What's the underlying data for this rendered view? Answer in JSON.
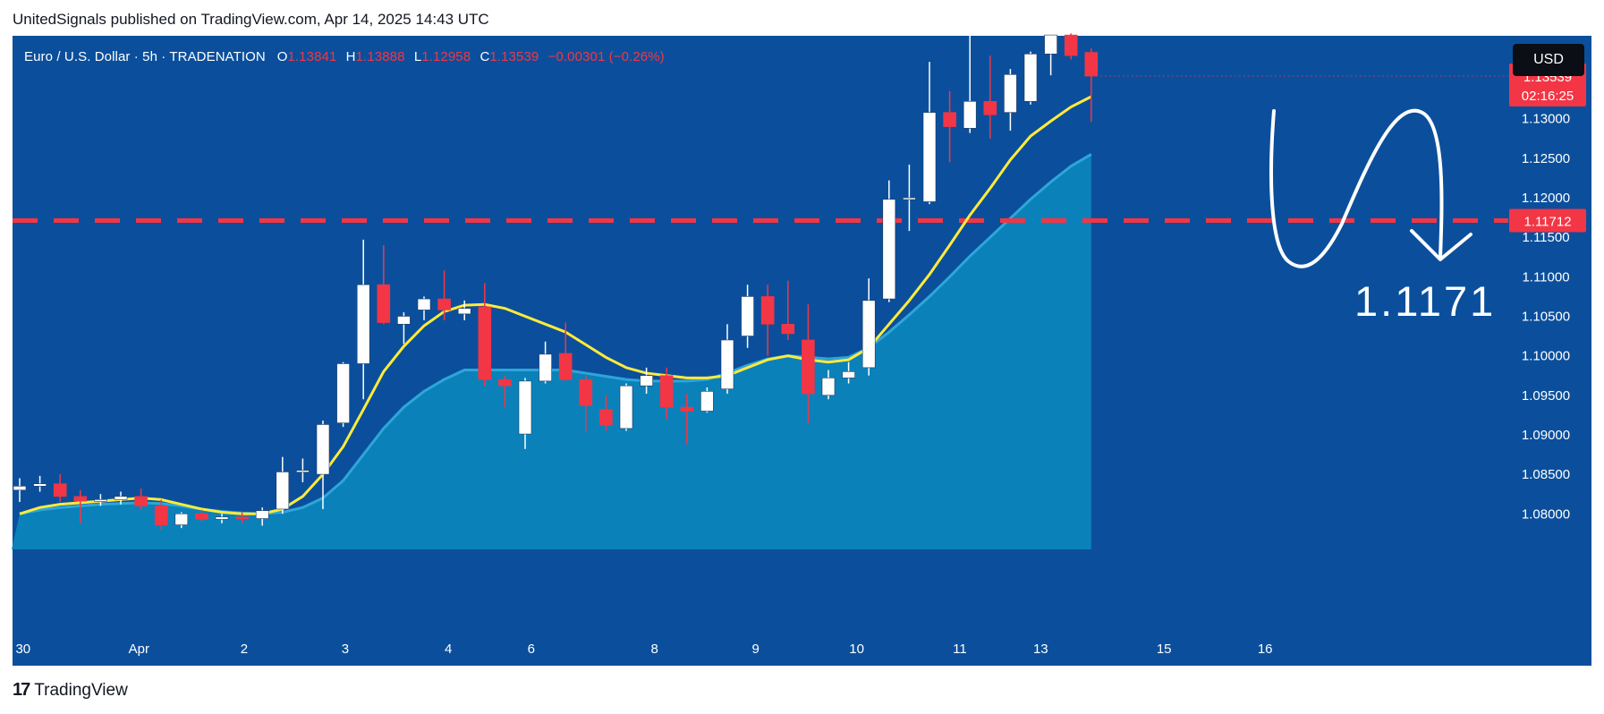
{
  "header": {
    "published_line": "UnitedSignals published on TradingView.com, Apr 14, 2025 14:43 UTC"
  },
  "legend": {
    "symbol": "Euro / U.S. Dollar · 5h · TRADENATION",
    "open_label": "O",
    "open": "1.13841",
    "high_label": "H",
    "high": "1.13888",
    "low_label": "L",
    "low": "1.12958",
    "close_label": "C",
    "close": "1.13539",
    "change": "−0.00301 (−0.26%)"
  },
  "currency_badge": "USD",
  "price_tags": {
    "last_price": "1.13539",
    "countdown": "02:16:25",
    "level_tag": "1.11712"
  },
  "annotation": {
    "level_text": "1.1171"
  },
  "footer": {
    "brand": "TradingView"
  },
  "colors": {
    "background": "#0b4f9c",
    "up": "#ffffff",
    "down": "#f23645",
    "ema": "#ffeb3b",
    "area": "#0b86be",
    "level_line": "#f23645"
  },
  "chart_data": {
    "type": "candlestick",
    "y_range": [
      1.0755,
      1.1405
    ],
    "y_ticks": [
      "1.08000",
      "1.08500",
      "1.09000",
      "1.09500",
      "1.10000",
      "1.10500",
      "1.11000",
      "1.11500",
      "1.12000",
      "1.12500",
      "1.13000"
    ],
    "y_tick_values": [
      1.08,
      1.085,
      1.09,
      1.095,
      1.1,
      1.105,
      1.11,
      1.115,
      1.12,
      1.125,
      1.13
    ],
    "x_labels": [
      {
        "label": "30",
        "bar": -0.2
      },
      {
        "label": "Apr",
        "bar": 5.9
      },
      {
        "label": "2",
        "bar": 11.1
      },
      {
        "label": "3",
        "bar": 16.1
      },
      {
        "label": "4",
        "bar": 21.2
      },
      {
        "label": "6",
        "bar": 25.3
      },
      {
        "label": "8",
        "bar": 31.4
      },
      {
        "label": "9",
        "bar": 36.4
      },
      {
        "label": "10",
        "bar": 41.4
      },
      {
        "label": "11",
        "bar": 46.5
      },
      {
        "label": "13",
        "bar": 50.5
      },
      {
        "label": "15",
        "bar": 56.6
      },
      {
        "label": "16",
        "bar": 61.6
      }
    ],
    "horizontal_level": 1.11712,
    "candles": [
      {
        "o": 1.083,
        "h": 1.0845,
        "l": 1.0815,
        "c": 1.0835
      },
      {
        "o": 1.0835,
        "h": 1.0848,
        "l": 1.0828,
        "c": 1.0838
      },
      {
        "o": 1.0838,
        "h": 1.085,
        "l": 1.0815,
        "c": 1.0822
      },
      {
        "o": 1.0822,
        "h": 1.083,
        "l": 1.0788,
        "c": 1.0816
      },
      {
        "o": 1.0816,
        "h": 1.0825,
        "l": 1.081,
        "c": 1.0818
      },
      {
        "o": 1.0818,
        "h": 1.0828,
        "l": 1.0812,
        "c": 1.0822
      },
      {
        "o": 1.0822,
        "h": 1.0832,
        "l": 1.0805,
        "c": 1.081
      },
      {
        "o": 1.081,
        "h": 1.0818,
        "l": 1.078,
        "c": 1.0786
      },
      {
        "o": 1.0786,
        "h": 1.0802,
        "l": 1.0782,
        "c": 1.08
      },
      {
        "o": 1.08,
        "h": 1.0805,
        "l": 1.079,
        "c": 1.0793
      },
      {
        "o": 1.0793,
        "h": 1.08,
        "l": 1.0788,
        "c": 1.0796
      },
      {
        "o": 1.0796,
        "h": 1.0802,
        "l": 1.0788,
        "c": 1.0794
      },
      {
        "o": 1.0794,
        "h": 1.0808,
        "l": 1.0785,
        "c": 1.0804
      },
      {
        "o": 1.0806,
        "h": 1.0872,
        "l": 1.08,
        "c": 1.0853
      },
      {
        "o": 1.0853,
        "h": 1.087,
        "l": 1.084,
        "c": 1.0855
      },
      {
        "o": 1.085,
        "h": 1.0918,
        "l": 1.0806,
        "c": 1.0913
      },
      {
        "o": 1.0915,
        "h": 1.0992,
        "l": 1.091,
        "c": 1.099
      },
      {
        "o": 1.099,
        "h": 1.1147,
        "l": 1.0945,
        "c": 1.109
      },
      {
        "o": 1.109,
        "h": 1.114,
        "l": 1.104,
        "c": 1.1042
      },
      {
        "o": 1.104,
        "h": 1.1055,
        "l": 1.1015,
        "c": 1.105
      },
      {
        "o": 1.1058,
        "h": 1.1075,
        "l": 1.1045,
        "c": 1.1072
      },
      {
        "o": 1.1072,
        "h": 1.1108,
        "l": 1.1045,
        "c": 1.1058
      },
      {
        "o": 1.1053,
        "h": 1.107,
        "l": 1.1045,
        "c": 1.106
      },
      {
        "o": 1.1062,
        "h": 1.1092,
        "l": 1.0962,
        "c": 1.097
      },
      {
        "o": 1.097,
        "h": 1.0975,
        "l": 1.0935,
        "c": 1.0962
      },
      {
        "o": 1.0901,
        "h": 1.0972,
        "l": 1.0882,
        "c": 1.0968
      },
      {
        "o": 1.0968,
        "h": 1.1018,
        "l": 1.0965,
        "c": 1.1002
      },
      {
        "o": 1.1003,
        "h": 1.1042,
        "l": 1.0968,
        "c": 1.097
      },
      {
        "o": 1.097,
        "h": 1.0975,
        "l": 1.0903,
        "c": 1.0937
      },
      {
        "o": 1.0932,
        "h": 1.095,
        "l": 1.0905,
        "c": 1.0912
      },
      {
        "o": 1.0908,
        "h": 1.0965,
        "l": 1.0905,
        "c": 1.0962
      },
      {
        "o": 1.0962,
        "h": 1.0985,
        "l": 1.0952,
        "c": 1.0975
      },
      {
        "o": 1.0975,
        "h": 1.0985,
        "l": 1.092,
        "c": 1.0935
      },
      {
        "o": 1.0935,
        "h": 1.0952,
        "l": 1.0888,
        "c": 1.093
      },
      {
        "o": 1.093,
        "h": 1.096,
        "l": 1.0928,
        "c": 1.0955
      },
      {
        "o": 1.0958,
        "h": 1.104,
        "l": 1.0952,
        "c": 1.102
      },
      {
        "o": 1.1025,
        "h": 1.109,
        "l": 1.101,
        "c": 1.1075
      },
      {
        "o": 1.1075,
        "h": 1.109,
        "l": 1.1,
        "c": 1.104
      },
      {
        "o": 1.104,
        "h": 1.1095,
        "l": 1.102,
        "c": 1.1028
      },
      {
        "o": 1.102,
        "h": 1.1065,
        "l": 1.0915,
        "c": 1.0952
      },
      {
        "o": 1.095,
        "h": 1.0982,
        "l": 1.0945,
        "c": 1.0972
      },
      {
        "o": 1.0972,
        "h": 1.0992,
        "l": 1.0965,
        "c": 1.098
      },
      {
        "o": 1.0985,
        "h": 1.1098,
        "l": 1.0975,
        "c": 1.107
      },
      {
        "o": 1.1072,
        "h": 1.1222,
        "l": 1.1068,
        "c": 1.1198
      },
      {
        "o": 1.1198,
        "h": 1.1242,
        "l": 1.1158,
        "c": 1.12
      },
      {
        "o": 1.1195,
        "h": 1.1372,
        "l": 1.1192,
        "c": 1.1308
      },
      {
        "o": 1.1308,
        "h": 1.1335,
        "l": 1.1245,
        "c": 1.129
      },
      {
        "o": 1.1288,
        "h": 1.1442,
        "l": 1.1282,
        "c": 1.1322
      },
      {
        "o": 1.1322,
        "h": 1.138,
        "l": 1.1275,
        "c": 1.1305
      },
      {
        "o": 1.1308,
        "h": 1.1363,
        "l": 1.1285,
        "c": 1.1356
      },
      {
        "o": 1.1322,
        "h": 1.1385,
        "l": 1.1318,
        "c": 1.1382
      },
      {
        "o": 1.1382,
        "h": 1.14,
        "l": 1.1355,
        "c": 1.1406
      },
      {
        "o": 1.1406,
        "h": 1.1408,
        "l": 1.1375,
        "c": 1.138
      },
      {
        "o": 1.1384,
        "h": 1.1389,
        "l": 1.1296,
        "c": 1.1354
      }
    ],
    "series": [
      {
        "values": [
          1.08,
          1.0808,
          1.0812,
          1.0814,
          1.0816,
          1.0818,
          1.082,
          1.0818,
          1.0812,
          1.0806,
          1.0802,
          1.08,
          1.08,
          1.0806,
          1.0822,
          1.085,
          1.0885,
          1.0932,
          1.098,
          1.1012,
          1.1038,
          1.1056,
          1.1064,
          1.1065,
          1.106,
          1.105,
          1.104,
          1.103,
          1.1014,
          1.0998,
          1.0985,
          1.0978,
          1.0975,
          1.0972,
          1.0972,
          1.0975,
          1.0985,
          1.0995,
          1.1,
          1.0995,
          1.0992,
          1.0995,
          1.101,
          1.104,
          1.107,
          1.1103,
          1.114,
          1.1178,
          1.1212,
          1.1248,
          1.1278,
          1.1297,
          1.1315,
          1.1328
        ]
      },
      {
        "values": [
          1.08,
          1.0805,
          1.0808,
          1.081,
          1.0812,
          1.0813,
          1.0814,
          1.0813,
          1.081,
          1.0806,
          1.0803,
          1.0801,
          1.08,
          1.0802,
          1.0808,
          1.082,
          1.0842,
          1.0875,
          1.0908,
          1.0935,
          1.0955,
          1.097,
          1.0982,
          1.0982,
          1.0982,
          1.0982,
          1.0982,
          1.0982,
          1.0978,
          1.0974,
          1.097,
          1.0968,
          1.0968,
          1.0968,
          1.097,
          1.0978,
          1.0988,
          1.0996,
          1.1,
          1.0998,
          1.0996,
          1.0998,
          1.101,
          1.103,
          1.1052,
          1.1075,
          1.11,
          1.1126,
          1.115,
          1.1174,
          1.1198,
          1.122,
          1.124,
          1.1255
        ]
      }
    ]
  }
}
